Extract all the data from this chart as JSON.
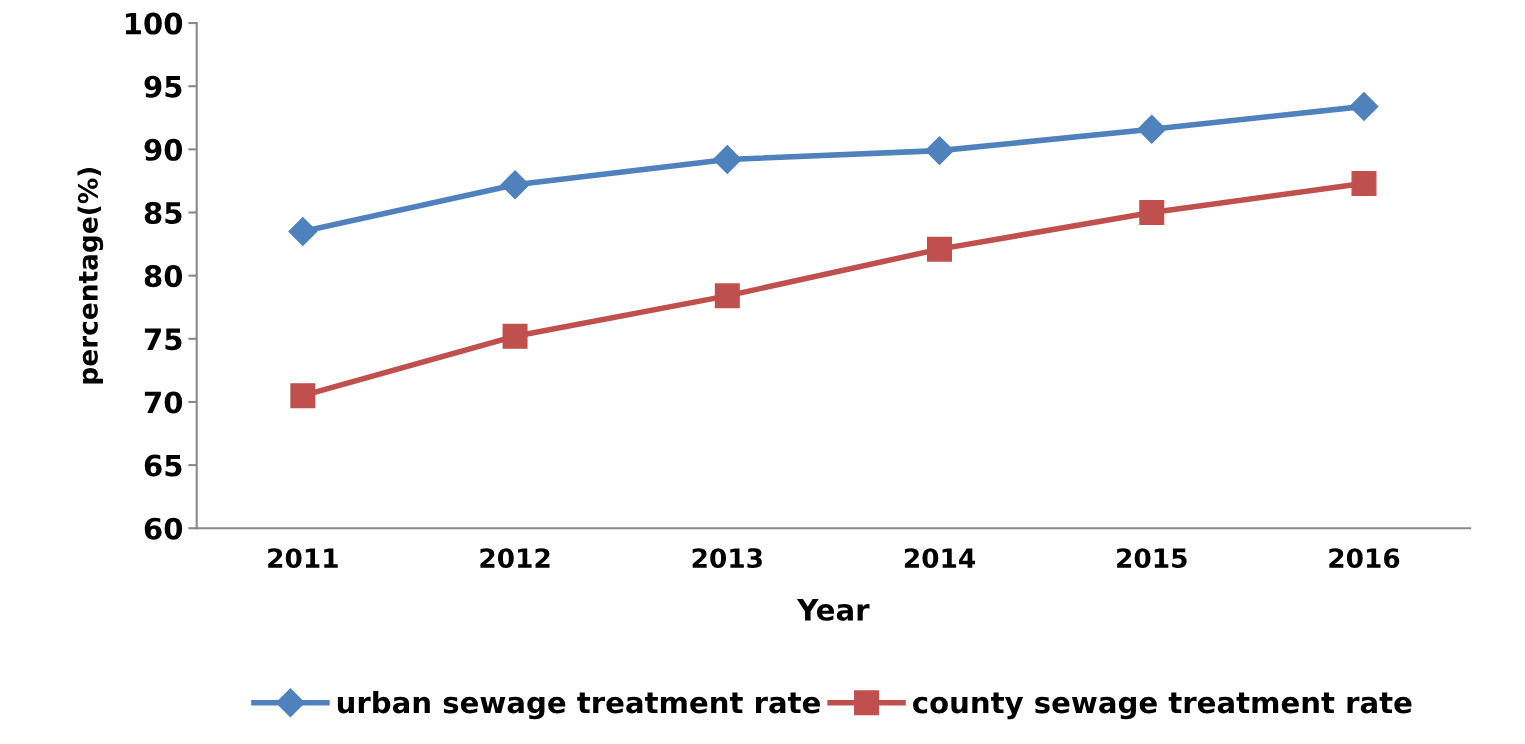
{
  "chart_data": {
    "type": "line",
    "xlabel": "Year",
    "ylabel": "percentage(%)",
    "categories": [
      "2011",
      "2012",
      "2013",
      "2014",
      "2015",
      "2016"
    ],
    "series": [
      {
        "name": "urban sewage treatment rate",
        "color": "#4f81bd",
        "marker": "diamond",
        "values": [
          83.5,
          87.2,
          89.2,
          89.9,
          91.6,
          93.4
        ]
      },
      {
        "name": "county sewage treatment rate",
        "color": "#c0504d",
        "marker": "square",
        "values": [
          70.5,
          75.2,
          78.4,
          82.1,
          85.0,
          87.3
        ]
      }
    ],
    "ylim": [
      60,
      100
    ],
    "yticks": [
      60,
      65,
      70,
      75,
      80,
      85,
      90,
      95,
      100
    ],
    "grid": false,
    "legend": "bottom",
    "line_style": "solid"
  }
}
